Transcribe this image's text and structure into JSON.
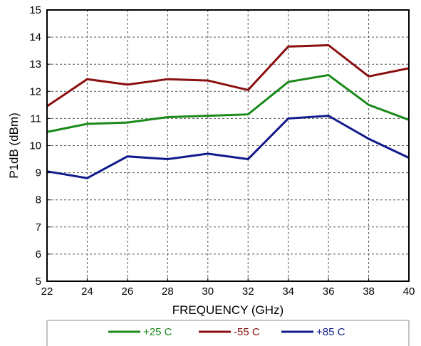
{
  "chart_data": {
    "type": "line",
    "title": "",
    "xlabel": "FREQUENCY (GHz)",
    "ylabel": "P1dB (dBm)",
    "xlim": [
      22,
      40
    ],
    "ylim": [
      5,
      15
    ],
    "xticks": [
      22,
      24,
      26,
      28,
      30,
      32,
      34,
      36,
      38,
      40
    ],
    "yticks": [
      5,
      6,
      7,
      8,
      9,
      10,
      11,
      12,
      13,
      14,
      15
    ],
    "grid": true,
    "legend_position": "bottom",
    "x": [
      22,
      24,
      26,
      28,
      30,
      32,
      34,
      36,
      38,
      40
    ],
    "series": [
      {
        "name": "+25 C",
        "color": "#1a8a1a",
        "values": [
          10.5,
          10.8,
          10.85,
          11.05,
          11.1,
          11.15,
          12.35,
          12.6,
          11.5,
          10.95
        ]
      },
      {
        "name": "-55 C",
        "color": "#8b0f0f",
        "values": [
          11.45,
          12.45,
          12.25,
          12.45,
          12.4,
          12.05,
          13.65,
          13.7,
          12.55,
          12.85
        ]
      },
      {
        "name": "+85 C",
        "color": "#101a8a",
        "values": [
          9.05,
          8.8,
          9.6,
          9.5,
          9.7,
          9.5,
          11.0,
          11.1,
          10.25,
          9.55
        ]
      }
    ]
  }
}
